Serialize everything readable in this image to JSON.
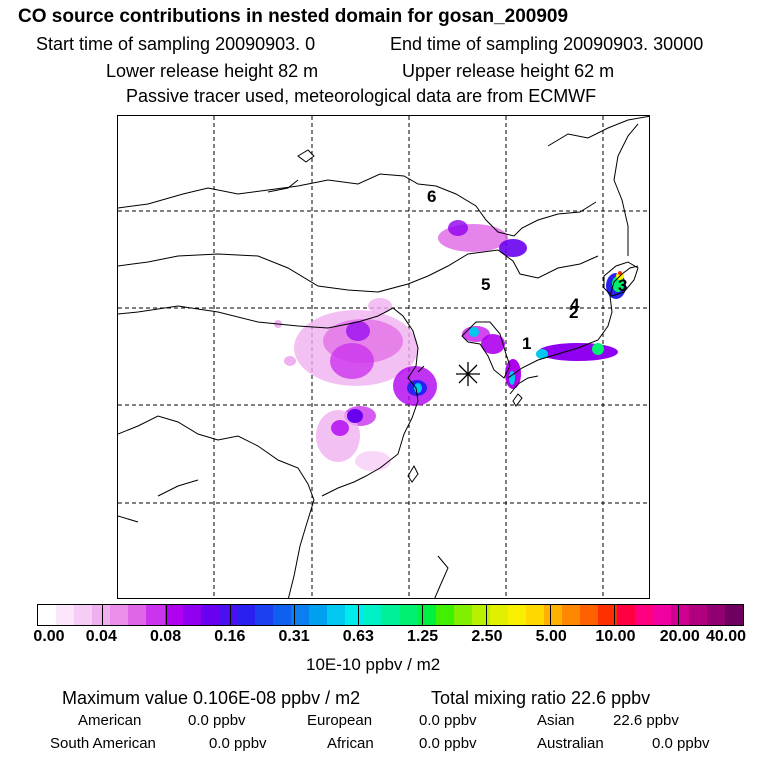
{
  "header": {
    "title": "CO  source contributions in nested domain for gosan_200909",
    "start_time": "Start time of sampling 20090903.     0",
    "end_time": "End time of sampling 20090903. 30000",
    "lower_release": "Lower release height   82 m",
    "upper_release": "Upper release height   62 m",
    "tracer_note": "Passive tracer used, meteorological data are from ECMWF"
  },
  "map": {
    "site_marker_icon": "asterisk-icon",
    "labels": [
      {
        "id": "label-6",
        "text": "6"
      },
      {
        "id": "label-5",
        "text": "5"
      },
      {
        "id": "label-4",
        "text": "4"
      },
      {
        "id": "label-2",
        "text": "2"
      },
      {
        "id": "label-3",
        "text": "3"
      },
      {
        "id": "label-1",
        "text": "1"
      }
    ]
  },
  "colorbar": {
    "tick_labels": [
      "0.00",
      "0.04",
      "0.08",
      "0.16",
      "0.31",
      "0.63",
      "1.25",
      "2.50",
      "5.00",
      "10.00",
      "20.00",
      "40.00"
    ],
    "colors": [
      "#ffffff",
      "#fbe6fb",
      "#f6cdf6",
      "#f0b0f0",
      "#e98ee9",
      "#df66e6",
      "#cc33ee",
      "#b000f0",
      "#9000f0",
      "#6a00f0",
      "#4a10f0",
      "#2a20f0",
      "#1c40f0",
      "#1060f0",
      "#0a80f0",
      "#00a0f0",
      "#00c8f0",
      "#00ecec",
      "#00f0c8",
      "#00f09a",
      "#00f070",
      "#00f040",
      "#40f000",
      "#80f000",
      "#b8f000",
      "#e0f000",
      "#f8f000",
      "#ffd800",
      "#ffb000",
      "#ff8800",
      "#ff6000",
      "#ff3000",
      "#ff0040",
      "#ff0080",
      "#f000a0",
      "#d00090",
      "#b00080",
      "#900070",
      "#700060"
    ],
    "units": "10E-10 ppbv / m2"
  },
  "summary": {
    "maximum": "Maximum value  0.106E-08 ppbv / m2",
    "total": "Total mixing ratio      22.6 ppbv",
    "regions": [
      {
        "name": "American",
        "value": "0.0 ppbv"
      },
      {
        "name": "European",
        "value": "0.0 ppbv"
      },
      {
        "name": "Asian",
        "value": "22.6 ppbv"
      },
      {
        "name": "South American",
        "value": "0.0 ppbv"
      },
      {
        "name": "African",
        "value": "0.0 ppbv"
      },
      {
        "name": "Australian",
        "value": "0.0 ppbv"
      }
    ]
  }
}
